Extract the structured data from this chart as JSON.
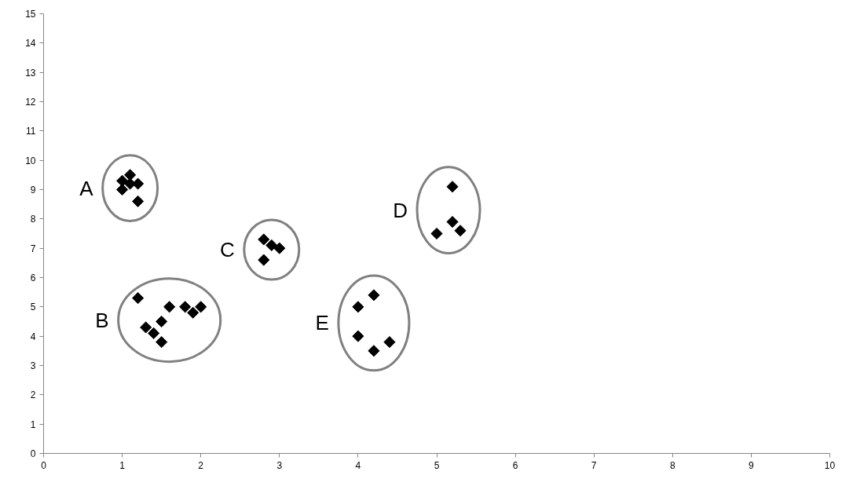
{
  "chart_data": {
    "type": "scatter",
    "marker": "diamond",
    "grid": false,
    "legend": false,
    "xlim": [
      0,
      10
    ],
    "ylim": [
      0,
      15
    ],
    "xticks": [
      0,
      1,
      2,
      3,
      4,
      5,
      6,
      7,
      8,
      9,
      10
    ],
    "yticks": [
      0,
      1,
      2,
      3,
      4,
      5,
      6,
      7,
      8,
      9,
      10,
      11,
      12,
      13,
      14,
      15
    ],
    "series": [
      {
        "name": "A",
        "color": "#000000",
        "x": [
          1.0,
          1.0,
          1.1,
          1.1,
          1.2,
          1.2
        ],
        "values": [
          9.3,
          9.0,
          9.5,
          9.2,
          9.2,
          8.6
        ]
      },
      {
        "name": "B",
        "color": "#000000",
        "x": [
          1.2,
          1.3,
          1.4,
          1.5,
          1.5,
          1.6,
          1.8,
          1.9,
          2.0
        ],
        "values": [
          5.3,
          4.3,
          4.1,
          4.5,
          3.8,
          5.0,
          5.0,
          4.8,
          5.0
        ]
      },
      {
        "name": "C",
        "color": "#000000",
        "x": [
          2.8,
          2.9,
          3.0,
          2.8
        ],
        "values": [
          7.3,
          7.1,
          7.0,
          6.6
        ]
      },
      {
        "name": "D",
        "color": "#000000",
        "x": [
          5.2,
          5.2,
          5.0,
          5.3
        ],
        "values": [
          9.1,
          7.9,
          7.5,
          7.6
        ]
      },
      {
        "name": "E",
        "color": "#000000",
        "x": [
          4.0,
          4.2,
          4.0,
          4.2,
          4.4
        ],
        "values": [
          5.0,
          5.4,
          4.0,
          3.5,
          3.8
        ]
      }
    ]
  }
}
